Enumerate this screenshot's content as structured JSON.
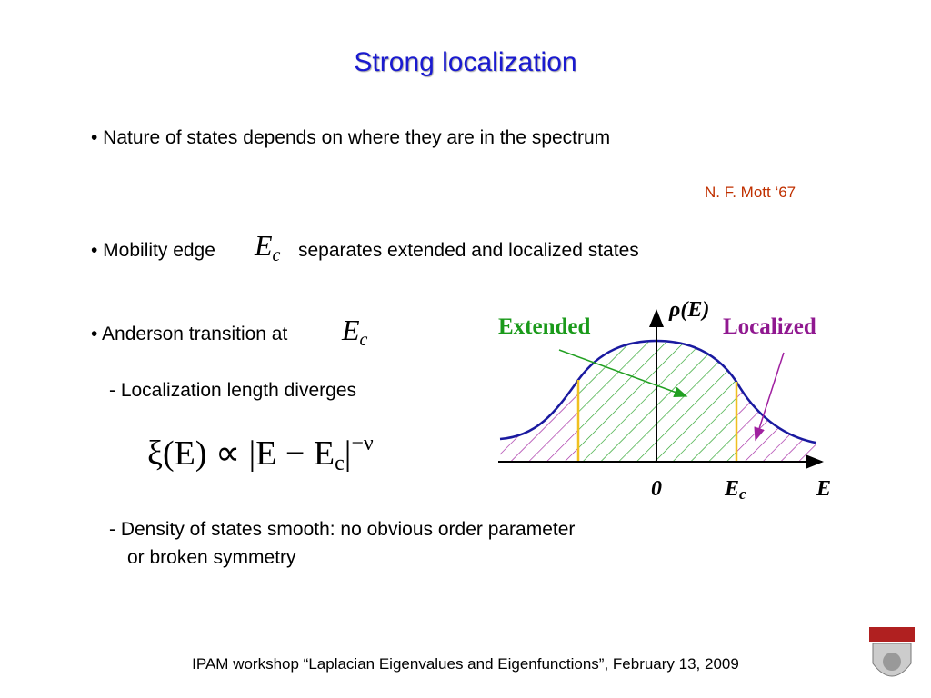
{
  "title": "Strong localization",
  "bullets": [
    {
      "text": "• Nature of states depends on where they are in the spectrum"
    },
    {
      "prefix": "• Mobility edge",
      "symbol": "E",
      "subscript": "c",
      "suffix": "separates extended and localized states"
    },
    {
      "prefix": "• Anderson transition at",
      "symbol": "E",
      "subscript": "c"
    }
  ],
  "citation": "N. F. Mott  ‘67",
  "sub_points": {
    "diverges": "- Localization length diverges",
    "density_line1": "- Density of states smooth: no obvious order parameter",
    "density_line2": "or broken symmetry"
  },
  "formula": {
    "main": "ξ(E) ∝ |E − E",
    "subscript": "c",
    "close": "|",
    "superscript": "−ν"
  },
  "diagram": {
    "y_label": "ρ(E)",
    "extended": "Extended",
    "localized": "Localized",
    "origin": "0",
    "edge": {
      "symbol": "E",
      "subscript": "c"
    },
    "x_label": "E"
  },
  "footer": "IPAM workshop “Laplacian Eigenvalues and Eigenfunctions”, February 13, 2009"
}
